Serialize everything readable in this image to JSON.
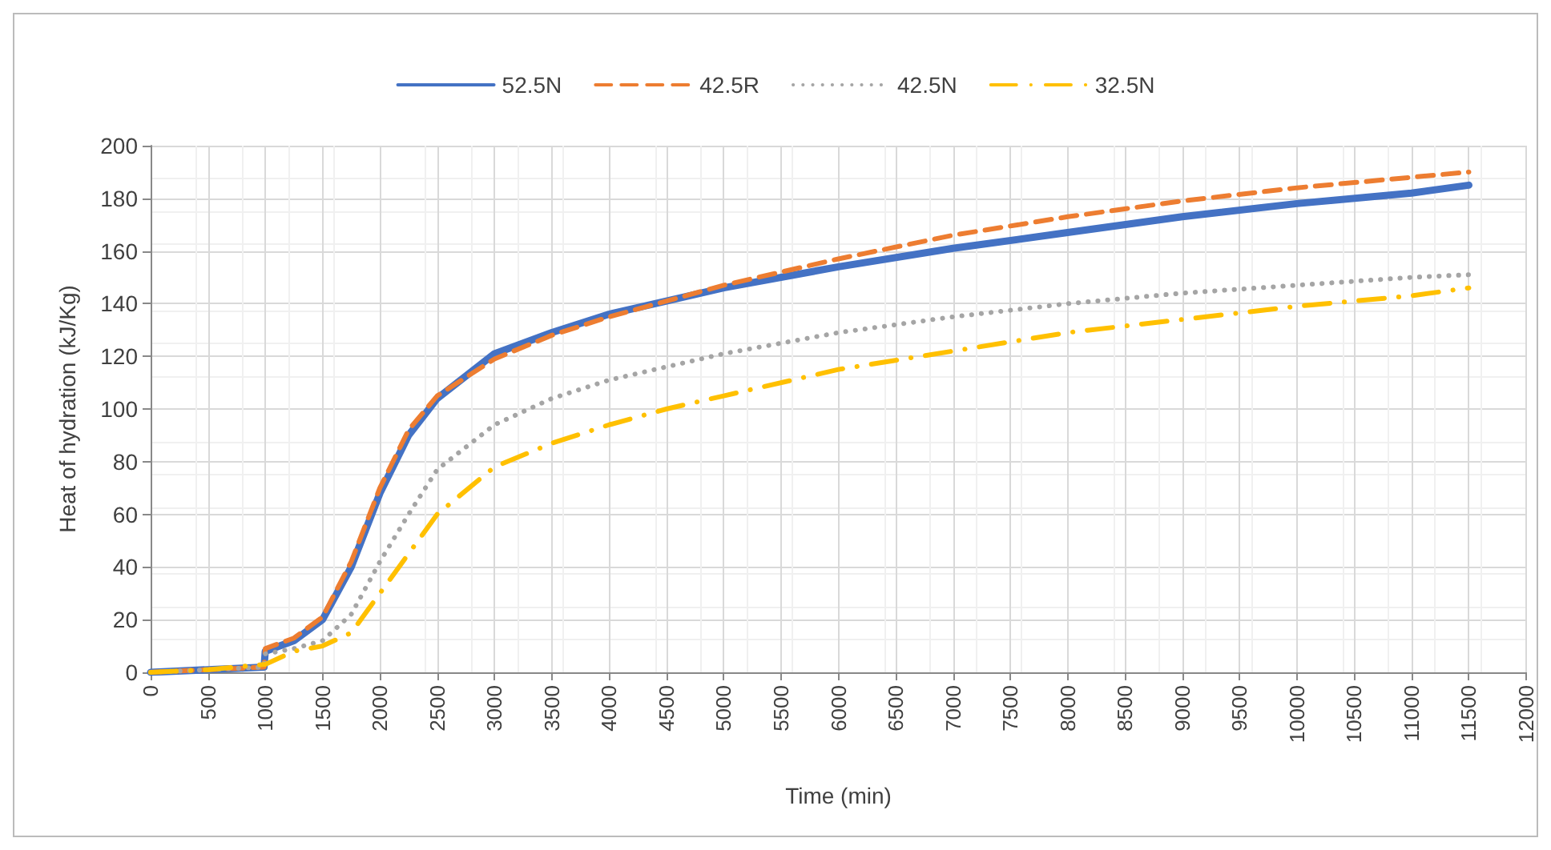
{
  "chart_data": {
    "type": "line",
    "xlabel": "Time (min)",
    "ylabel": "Heat of hydration (kJ/Kg)",
    "x": [
      0,
      500,
      990,
      1000,
      1250,
      1500,
      1750,
      2000,
      2250,
      2500,
      3000,
      3500,
      4000,
      4500,
      5000,
      6000,
      7000,
      8000,
      9000,
      10000,
      11000,
      11500
    ],
    "series": [
      {
        "name": "52.5N",
        "color": "#4472c4",
        "line_style": "solid",
        "values": [
          0,
          1,
          2,
          8,
          12,
          20,
          40,
          68,
          90,
          104,
          121,
          129,
          136,
          141,
          146,
          154,
          161,
          167,
          173,
          178,
          182,
          185
        ]
      },
      {
        "name": "42.5R",
        "color": "#ed7d31",
        "line_style": "dashed",
        "values": [
          0,
          1,
          2,
          9,
          13,
          21,
          42,
          70,
          92,
          105,
          119,
          128,
          135,
          141,
          147,
          157,
          166,
          173,
          179,
          184,
          188,
          190
        ]
      },
      {
        "name": "42.5N",
        "color": "#a5a5a5",
        "line_style": "dotted",
        "values": [
          0,
          1,
          2,
          7,
          9,
          12,
          22,
          42,
          60,
          77,
          94,
          104,
          111,
          116,
          121,
          129,
          135,
          140,
          144,
          147,
          150,
          151
        ]
      },
      {
        "name": "32.5N",
        "color": "#ffc000",
        "line_style": "dashdot",
        "values": [
          0,
          1,
          3,
          3,
          8,
          10,
          15,
          30,
          45,
          60,
          78,
          87,
          94,
          100,
          105,
          115,
          122,
          129,
          134,
          139,
          143,
          146
        ]
      }
    ],
    "xlim": [
      0,
      12000
    ],
    "xticks": [
      0,
      500,
      1000,
      1500,
      2000,
      2500,
      3000,
      3500,
      4000,
      4500,
      5000,
      5500,
      6000,
      6500,
      7000,
      7500,
      8000,
      8500,
      9000,
      9500,
      10000,
      10500,
      11000,
      11500,
      12000
    ],
    "ylim": [
      0,
      200
    ],
    "yticks": [
      0,
      20,
      40,
      60,
      80,
      100,
      120,
      140,
      160,
      180,
      200
    ],
    "grid": true,
    "legend": "top",
    "marker": "none"
  }
}
